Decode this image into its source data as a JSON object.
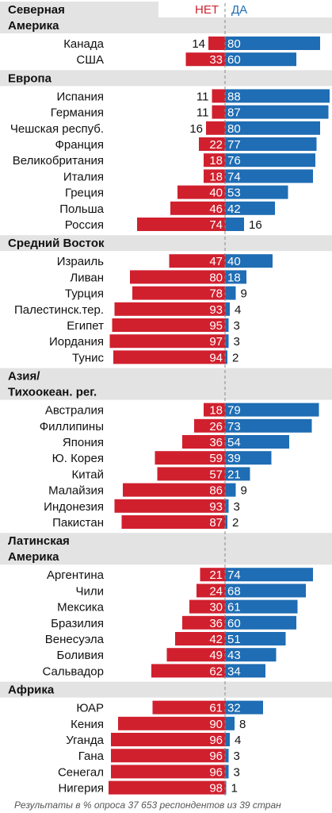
{
  "chart_data": {
    "type": "bar",
    "layout": "diverging",
    "header": {
      "title_lines": [
        "Северная",
        "Америка"
      ],
      "neg_label": "НЕТ",
      "pos_label": "ДА"
    },
    "colors": {
      "no": "#d0202e",
      "yes": "#1f6db4",
      "band": "#e3e3e3",
      "divider": "#888888"
    },
    "groups": [
      {
        "name": "Северная Америка",
        "title_lines": [],
        "items": [
          {
            "label": "Канада",
            "no": 14,
            "yes": 80
          },
          {
            "label": "США",
            "no": 33,
            "yes": 60
          }
        ]
      },
      {
        "name": "Европа",
        "title_lines": [
          "Европа"
        ],
        "items": [
          {
            "label": "Испания",
            "no": 11,
            "yes": 88
          },
          {
            "label": "Германия",
            "no": 11,
            "yes": 87
          },
          {
            "label": "Чешская респуб.",
            "no": 16,
            "yes": 80
          },
          {
            "label": "Франция",
            "no": 22,
            "yes": 77
          },
          {
            "label": "Великобритания",
            "no": 18,
            "yes": 76
          },
          {
            "label": "Италия",
            "no": 18,
            "yes": 74
          },
          {
            "label": "Греция",
            "no": 40,
            "yes": 53
          },
          {
            "label": "Польша",
            "no": 46,
            "yes": 42
          },
          {
            "label": "Россия",
            "no": 74,
            "yes": 16
          }
        ]
      },
      {
        "name": "Средний Восток",
        "title_lines": [
          "Средний Восток"
        ],
        "items": [
          {
            "label": "Израиль",
            "no": 47,
            "yes": 40
          },
          {
            "label": "Ливан",
            "no": 80,
            "yes": 18
          },
          {
            "label": "Турция",
            "no": 78,
            "yes": 9
          },
          {
            "label": "Палестинск.тер.",
            "no": 93,
            "yes": 4
          },
          {
            "label": "Египет",
            "no": 95,
            "yes": 3
          },
          {
            "label": "Иордания",
            "no": 97,
            "yes": 3
          },
          {
            "label": "Тунис",
            "no": 94,
            "yes": 2
          }
        ]
      },
      {
        "name": "Азия/ Тихоокеан. рег.",
        "title_lines": [
          "Азия/",
          "Тихоокеан. рег."
        ],
        "items": [
          {
            "label": "Австралия",
            "no": 18,
            "yes": 79
          },
          {
            "label": "Филлипины",
            "no": 26,
            "yes": 73
          },
          {
            "label": "Япония",
            "no": 36,
            "yes": 54
          },
          {
            "label": "Ю. Корея",
            "no": 59,
            "yes": 39
          },
          {
            "label": "Китай",
            "no": 57,
            "yes": 21
          },
          {
            "label": "Малайзия",
            "no": 86,
            "yes": 9
          },
          {
            "label": "Индонезия",
            "no": 93,
            "yes": 3
          },
          {
            "label": "Пакистан",
            "no": 87,
            "yes": 2
          }
        ]
      },
      {
        "name": "Латинская Америка",
        "title_lines": [
          "Латинская",
          "Америка"
        ],
        "items": [
          {
            "label": "Аргентина",
            "no": 21,
            "yes": 74
          },
          {
            "label": "Чили",
            "no": 24,
            "yes": 68
          },
          {
            "label": "Мексика",
            "no": 30,
            "yes": 61
          },
          {
            "label": "Бразилия",
            "no": 36,
            "yes": 60
          },
          {
            "label": "Венесуэла",
            "no": 42,
            "yes": 51
          },
          {
            "label": "Боливия",
            "no": 49,
            "yes": 43
          },
          {
            "label": "Сальвадор",
            "no": 62,
            "yes": 34
          }
        ]
      },
      {
        "name": "Африка",
        "title_lines": [
          "Африка"
        ],
        "items": [
          {
            "label": "ЮАР",
            "no": 61,
            "yes": 32
          },
          {
            "label": "Кения",
            "no": 90,
            "yes": 8
          },
          {
            "label": "Уганда",
            "no": 96,
            "yes": 4
          },
          {
            "label": "Гана",
            "no": 96,
            "yes": 3
          },
          {
            "label": "Сенегал",
            "no": 96,
            "yes": 3
          },
          {
            "label": "Нигерия",
            "no": 98,
            "yes": 1
          }
        ]
      }
    ],
    "footnote": "Результаты в % опроса 37 653 респондентов из 39 стран"
  }
}
